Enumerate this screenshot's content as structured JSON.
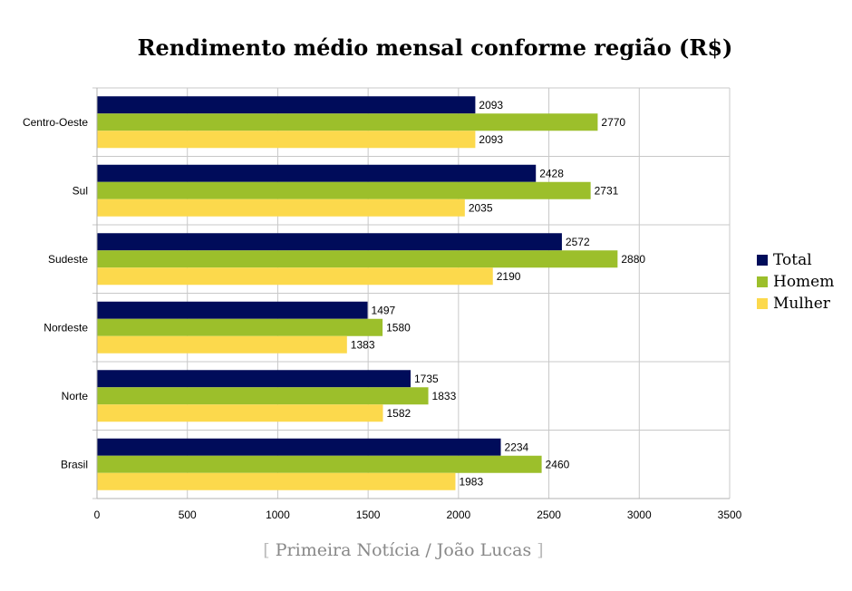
{
  "chart_data": {
    "type": "bar",
    "orientation": "horizontal",
    "title": "Rendimento médio mensal conforme região (R$)",
    "categories": [
      "Centro-Oeste",
      "Sul",
      "Sudeste",
      "Nordeste",
      "Norte",
      "Brasil"
    ],
    "series": [
      {
        "name": "Total",
        "color": "#000c5a",
        "values": [
          2093,
          2428,
          2572,
          1497,
          1735,
          2234
        ]
      },
      {
        "name": "Homem",
        "color": "#9cbf2b",
        "values": [
          2770,
          2731,
          2880,
          1580,
          1833,
          2460
        ]
      },
      {
        "name": "Mulher",
        "color": "#fcd94c",
        "values": [
          2093,
          2035,
          2190,
          1383,
          1582,
          1983
        ]
      }
    ],
    "xlim": [
      0,
      3500
    ],
    "xticks": [
      0,
      500,
      1000,
      1500,
      2000,
      2500,
      3000,
      3500
    ],
    "grid": true,
    "legend_position": "right"
  },
  "credit": {
    "open_bracket": "[",
    "text": "Primeira Notícia / João Lucas",
    "close_bracket": "]"
  }
}
